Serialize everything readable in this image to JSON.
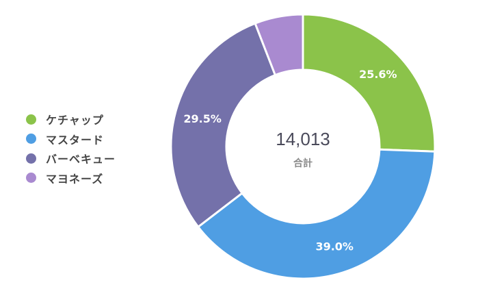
{
  "chart_data": {
    "type": "donut",
    "center": {
      "total": "14,013",
      "caption": "合計"
    },
    "slices": [
      {
        "name": "ケチャップ",
        "value": 25.6,
        "label": "25.6%",
        "color": "#8bc34a"
      },
      {
        "name": "マスタード",
        "value": 39.0,
        "label": "39.0%",
        "color": "#4f9ee3"
      },
      {
        "name": "バーベキュー",
        "value": 29.5,
        "label": "29.5%",
        "color": "#7471aa"
      },
      {
        "name": "マヨネーズ",
        "value": 5.9,
        "label": "",
        "color": "#a98ad0"
      }
    ],
    "legend_position": "left"
  }
}
